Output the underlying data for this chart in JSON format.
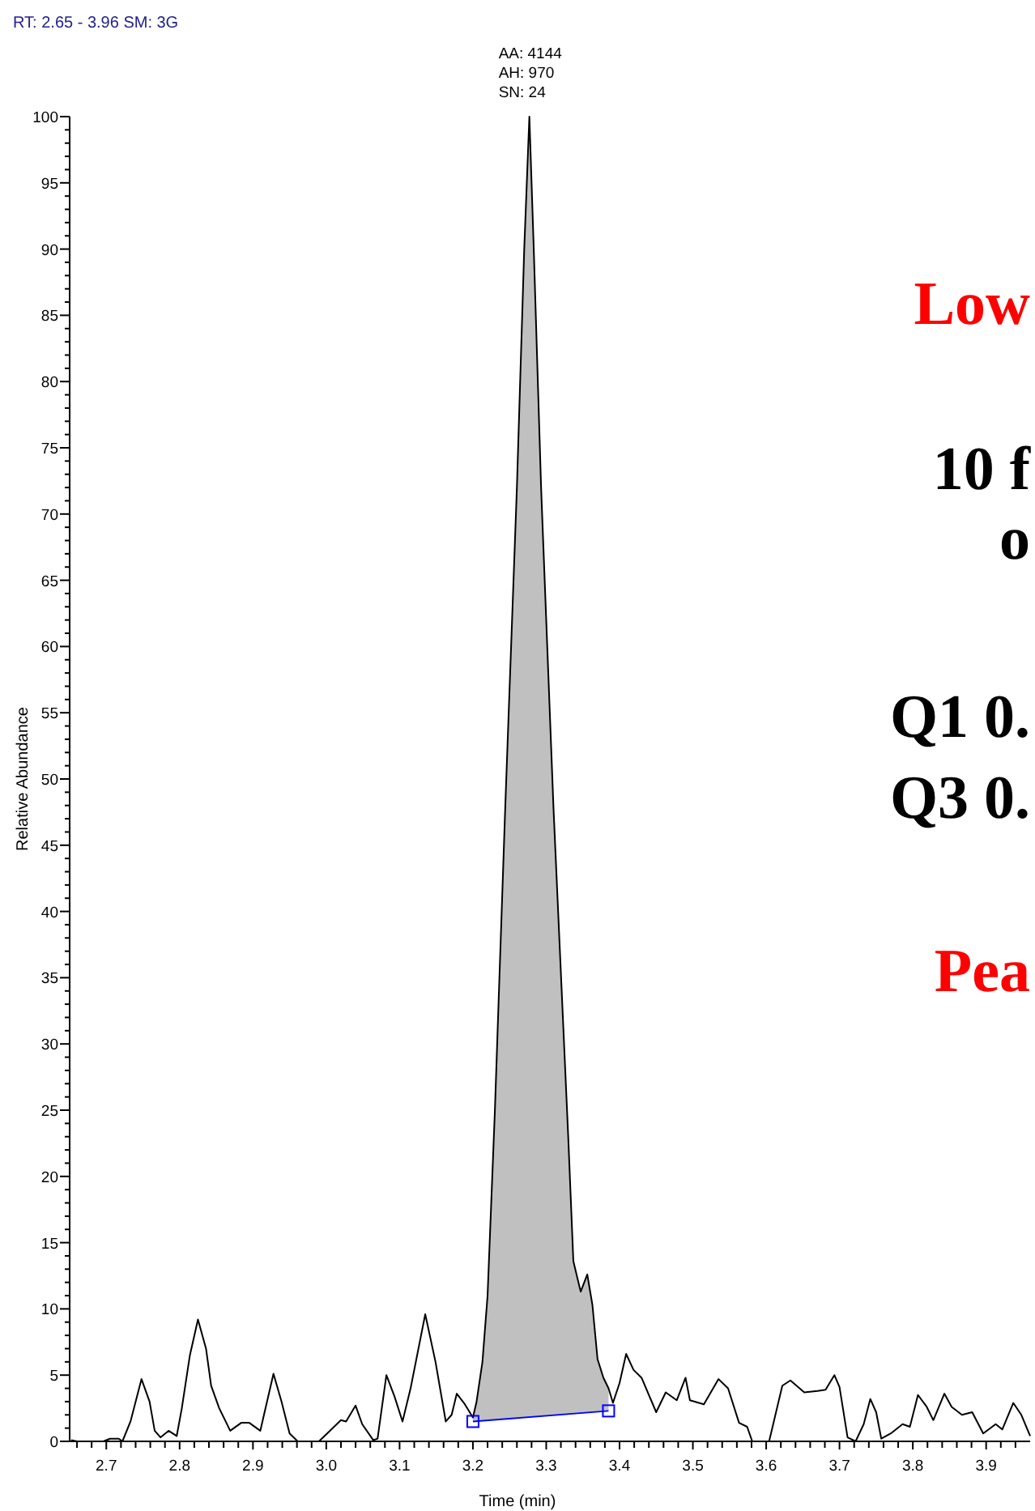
{
  "chart_data": {
    "type": "line",
    "xlabel": "Time (min)",
    "ylabel": "Relative Abundance",
    "xlim": [
      2.65,
      3.96
    ],
    "ylim": [
      0,
      100
    ],
    "xticks": [
      {
        "value": 2.66,
        "label": null
      },
      {
        "value": 2.68,
        "label": null
      },
      2.7,
      {
        "value": 2.72,
        "label": null
      },
      {
        "value": 2.74,
        "label": null
      },
      {
        "value": 2.76,
        "label": null
      },
      {
        "value": 2.78,
        "label": null
      },
      2.8,
      {
        "value": 2.82,
        "label": null
      },
      {
        "value": 2.84,
        "label": null
      },
      {
        "value": 2.86,
        "label": null
      },
      {
        "value": 2.88,
        "label": null
      },
      2.9,
      {
        "value": 2.92,
        "label": null
      },
      {
        "value": 2.94,
        "label": null
      },
      {
        "value": 2.96,
        "label": null
      },
      {
        "value": 2.98,
        "label": null
      },
      {
        "value": 3,
        "label": "3.0"
      },
      {
        "value": 3.02,
        "label": null
      },
      {
        "value": 3.04,
        "label": null
      },
      {
        "value": 3.06,
        "label": null
      },
      {
        "value": 3.08,
        "label": null
      },
      3.1,
      {
        "value": 3.12,
        "label": null
      },
      {
        "value": 3.14,
        "label": null
      },
      {
        "value": 3.16,
        "label": null
      },
      {
        "value": 3.18,
        "label": null
      },
      3.2,
      {
        "value": 3.22,
        "label": null
      },
      {
        "value": 3.24,
        "label": null
      },
      {
        "value": 3.26,
        "label": null
      },
      {
        "value": 3.28,
        "label": null
      },
      3.3,
      {
        "value": 3.32,
        "label": null
      },
      {
        "value": 3.34,
        "label": null
      },
      {
        "value": 3.36,
        "label": null
      },
      {
        "value": 3.38,
        "label": null
      },
      3.4,
      {
        "value": 3.42,
        "label": null
      },
      {
        "value": 3.44,
        "label": null
      },
      {
        "value": 3.46,
        "label": null
      },
      {
        "value": 3.48,
        "label": null
      },
      3.5,
      {
        "value": 3.52,
        "label": null
      },
      {
        "value": 3.54,
        "label": null
      },
      {
        "value": 3.56,
        "label": null
      },
      {
        "value": 3.58,
        "label": null
      },
      3.6,
      {
        "value": 3.62,
        "label": null
      },
      {
        "value": 3.64,
        "label": null
      },
      {
        "value": 3.66,
        "label": null
      },
      {
        "value": 3.68,
        "label": null
      },
      3.7,
      {
        "value": 3.72,
        "label": null
      },
      {
        "value": 3.74,
        "label": null
      },
      {
        "value": 3.76,
        "label": null
      },
      {
        "value": 3.78,
        "label": null
      },
      3.8,
      {
        "value": 3.82,
        "label": null
      },
      {
        "value": 3.84,
        "label": null
      },
      {
        "value": 3.86,
        "label": null
      },
      {
        "value": 3.88,
        "label": null
      },
      3.9,
      {
        "value": 3.92,
        "label": null
      },
      {
        "value": 3.94,
        "label": null
      }
    ],
    "yticks": [
      0,
      {
        "value": 1,
        "label": null
      },
      {
        "value": 2,
        "label": null
      },
      {
        "value": 3,
        "label": null
      },
      {
        "value": 4,
        "label": null
      },
      5,
      {
        "value": 6,
        "label": null
      },
      {
        "value": 7,
        "label": null
      },
      {
        "value": 8,
        "label": null
      },
      {
        "value": 9,
        "label": null
      },
      10,
      {
        "value": 11,
        "label": null
      },
      {
        "value": 12,
        "label": null
      },
      {
        "value": 13,
        "label": null
      },
      {
        "value": 14,
        "label": null
      },
      15,
      {
        "value": 16,
        "label": null
      },
      {
        "value": 17,
        "label": null
      },
      {
        "value": 18,
        "label": null
      },
      {
        "value": 19,
        "label": null
      },
      20,
      {
        "value": 21,
        "label": null
      },
      {
        "value": 22,
        "label": null
      },
      {
        "value": 23,
        "label": null
      },
      {
        "value": 24,
        "label": null
      },
      25,
      {
        "value": 26,
        "label": null
      },
      {
        "value": 27,
        "label": null
      },
      {
        "value": 28,
        "label": null
      },
      {
        "value": 29,
        "label": null
      },
      30,
      {
        "value": 31,
        "label": null
      },
      {
        "value": 32,
        "label": null
      },
      {
        "value": 33,
        "label": null
      },
      {
        "value": 34,
        "label": null
      },
      35,
      {
        "value": 36,
        "label": null
      },
      {
        "value": 37,
        "label": null
      },
      {
        "value": 38,
        "label": null
      },
      {
        "value": 39,
        "label": null
      },
      40,
      {
        "value": 41,
        "label": null
      },
      {
        "value": 42,
        "label": null
      },
      {
        "value": 43,
        "label": null
      },
      {
        "value": 44,
        "label": null
      },
      45,
      {
        "value": 46,
        "label": null
      },
      {
        "value": 47,
        "label": null
      },
      {
        "value": 48,
        "label": null
      },
      {
        "value": 49,
        "label": null
      },
      50,
      {
        "value": 51,
        "label": null
      },
      {
        "value": 52,
        "label": null
      },
      {
        "value": 53,
        "label": null
      },
      {
        "value": 54,
        "label": null
      },
      55,
      {
        "value": 56,
        "label": null
      },
      {
        "value": 57,
        "label": null
      },
      {
        "value": 58,
        "label": null
      },
      {
        "value": 59,
        "label": null
      },
      60,
      {
        "value": 61,
        "label": null
      },
      {
        "value": 62,
        "label": null
      },
      {
        "value": 63,
        "label": null
      },
      {
        "value": 64,
        "label": null
      },
      65,
      {
        "value": 66,
        "label": null
      },
      {
        "value": 67,
        "label": null
      },
      {
        "value": 68,
        "label": null
      },
      {
        "value": 69,
        "label": null
      },
      70,
      {
        "value": 71,
        "label": null
      },
      {
        "value": 72,
        "label": null
      },
      {
        "value": 73,
        "label": null
      },
      {
        "value": 74,
        "label": null
      },
      75,
      {
        "value": 76,
        "label": null
      },
      {
        "value": 77,
        "label": null
      },
      {
        "value": 78,
        "label": null
      },
      {
        "value": 79,
        "label": null
      },
      80,
      {
        "value": 81,
        "label": null
      },
      {
        "value": 82,
        "label": null
      },
      {
        "value": 83,
        "label": null
      },
      {
        "value": 84,
        "label": null
      },
      85,
      {
        "value": 86,
        "label": null
      },
      {
        "value": 87,
        "label": null
      },
      {
        "value": 88,
        "label": null
      },
      {
        "value": 89,
        "label": null
      },
      90,
      {
        "value": 91,
        "label": null
      },
      {
        "value": 92,
        "label": null
      },
      {
        "value": 93,
        "label": null
      },
      {
        "value": 94,
        "label": null
      },
      95,
      {
        "value": 96,
        "label": null
      },
      {
        "value": 97,
        "label": null
      },
      {
        "value": 98,
        "label": null
      },
      {
        "value": 99,
        "label": null
      },
      100
    ],
    "series": [
      {
        "type": "area",
        "color": "#c0c0c0",
        "x": [
          3.2,
          3.205,
          3.213,
          3.22,
          3.23,
          3.244,
          3.26,
          3.27,
          3.277,
          3.283,
          3.293,
          3.31,
          3.33,
          3.337,
          3.347,
          3.356,
          3.363,
          3.37,
          3.378,
          3.385
        ],
        "values": [
          1.8,
          3,
          6,
          11,
          25,
          47.7,
          72,
          90,
          100,
          90,
          72,
          47.7,
          23,
          13.6,
          11.3,
          12.6,
          10.3,
          6.2,
          4.8,
          4.0
        ]
      },
      {
        "color": "#000000",
        "x": [
          2.652,
          2.66,
          2.696,
          2.705,
          2.717,
          2.722,
          2.733,
          2.748,
          2.759,
          2.766,
          2.774,
          2.785,
          2.796,
          2.803,
          2.814,
          2.825,
          2.836,
          2.843,
          2.854,
          2.869,
          2.884,
          2.895,
          2.91,
          2.928,
          2.939,
          2.95,
          2.961,
          2.99,
          3.005,
          3.02,
          3.027,
          3.04,
          3.049,
          3.064,
          3.07,
          3.082,
          3.093,
          3.104,
          3.115,
          3.135,
          3.149,
          3.163,
          3.171,
          3.178,
          3.189,
          3.2,
          3.205,
          3.213,
          3.22,
          3.23,
          3.244,
          3.26,
          3.27,
          3.277,
          3.283,
          3.293,
          3.31,
          3.33,
          3.337,
          3.347,
          3.356,
          3.363,
          3.37,
          3.378,
          3.385,
          3.391,
          3.4,
          3.409,
          3.419,
          3.43,
          3.45,
          3.463,
          3.478,
          3.49,
          3.496,
          3.515,
          3.535,
          3.548,
          3.563,
          3.574,
          3.581,
          3.604,
          3.622,
          3.633,
          3.652,
          3.67,
          3.681,
          3.693,
          3.7,
          3.711,
          3.722,
          3.733,
          3.742,
          3.75,
          3.757,
          3.77,
          3.786,
          3.796,
          3.807,
          3.819,
          3.828,
          3.843,
          3.853,
          3.867,
          3.881,
          3.896,
          3.913,
          3.922,
          3.937,
          3.948,
          3.96
        ],
        "values": [
          0.1,
          0,
          0,
          0.2,
          0.2,
          0,
          1.5,
          4.7,
          3,
          0.8,
          0.3,
          0.8,
          0.4,
          2.5,
          6.5,
          9.2,
          7,
          4.2,
          2.5,
          0.8,
          1.4,
          1.4,
          0.8,
          5.1,
          3,
          0.6,
          0,
          0,
          0.8,
          1.6,
          1.5,
          2.7,
          1.3,
          0.1,
          0.2,
          5,
          3.4,
          1.5,
          4,
          9.6,
          6,
          1.5,
          2,
          3.6,
          2.8,
          1.8,
          3,
          6,
          11,
          25,
          47.7,
          72,
          90,
          100,
          90,
          72,
          47.7,
          23,
          13.6,
          11.3,
          12.6,
          10.3,
          6.2,
          4.8,
          4.0,
          2.9,
          4.4,
          6.6,
          5.4,
          4.8,
          2.2,
          3.7,
          3.1,
          4.8,
          3.1,
          2.8,
          4.7,
          4,
          1.4,
          1.1,
          0,
          0,
          4.2,
          4.6,
          3.7,
          3.8,
          3.9,
          5,
          4.1,
          0.3,
          0,
          1.3,
          3.2,
          2.2,
          0.2,
          0.6,
          1.3,
          1.1,
          3.5,
          2.6,
          1.6,
          3.6,
          2.6,
          2,
          2.2,
          0.6,
          1.3,
          0.9,
          2.9,
          2,
          0.4
        ]
      },
      {
        "type": "line",
        "color": "#0000ff",
        "marker": "square",
        "x": [
          3.2,
          3.385
        ],
        "values": [
          1.5,
          2.3
        ]
      }
    ],
    "annotations": [
      "RT: 2.65 - 3.96  SM: 3G",
      "AA: 4144",
      "AH: 970",
      "SN: 24",
      "Low",
      "10 f",
      "o",
      "Q1 0.",
      "Q3 0.",
      "Pea"
    ]
  }
}
